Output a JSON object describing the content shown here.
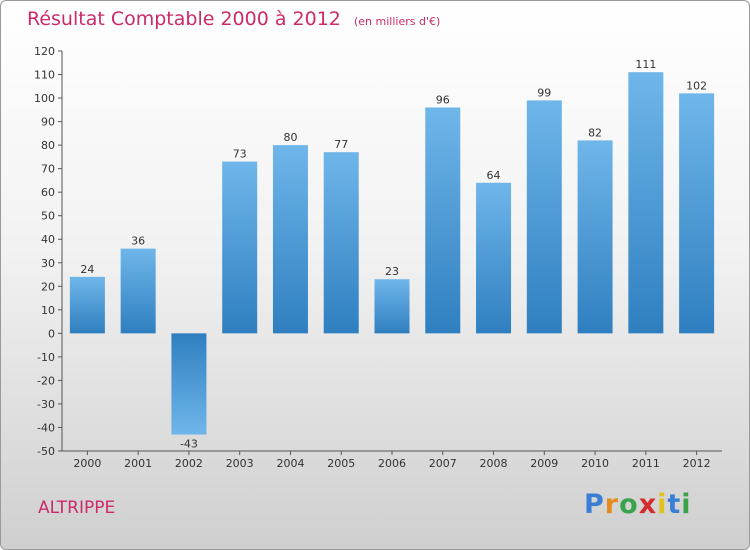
{
  "chart_data": {
    "type": "bar",
    "title": "Résultat Comptable 2000 à 2012",
    "subtitle": "(en milliers d'€)",
    "categories": [
      "2000",
      "2001",
      "2002",
      "2003",
      "2004",
      "2005",
      "2006",
      "2007",
      "2008",
      "2009",
      "2010",
      "2011",
      "2012"
    ],
    "values": [
      24,
      36,
      -43,
      73,
      80,
      77,
      23,
      96,
      64,
      99,
      82,
      111,
      102
    ],
    "ylim": [
      -50,
      120
    ],
    "ytick_step": 10,
    "xlabel": "",
    "ylabel": "",
    "grid": false,
    "colors": {
      "bar_top": "#6fb6ea",
      "bar_bottom": "#2f7fc0",
      "text": "#333333"
    }
  },
  "footer": {
    "commune": "ALTRIPPE",
    "brand": "Proxiti"
  }
}
